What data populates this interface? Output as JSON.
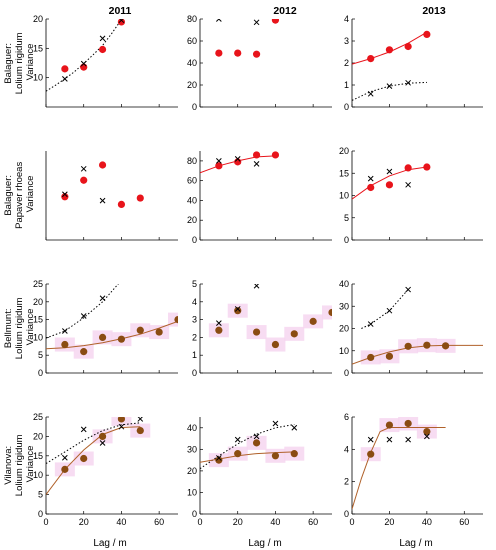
{
  "figure": {
    "column_titles": [
      "2011",
      "2012",
      "2013"
    ],
    "row_labels": [
      [
        "Balaguer:",
        "Lolium rigidum",
        "Variance"
      ],
      [
        "Balaguer:",
        "Papaver rhoeas",
        "Variance"
      ],
      [
        "Bellmunt:",
        "Lolium rigidum",
        "Variance"
      ],
      [
        "Vilanova:",
        "Lolium rigidum",
        "Variance"
      ]
    ],
    "xlabel": "Lag / m",
    "colors": {
      "red": "#e8141b",
      "brown": "#8a4c12",
      "brown_line": "#b0612a",
      "band": "#f6d6f0",
      "cross": "#000000"
    }
  },
  "chart_data": [
    {
      "type": "scatter",
      "row": 0,
      "col": 0,
      "title": "2011",
      "xlim": [
        0,
        70
      ],
      "ylim": [
        5,
        20
      ],
      "yticks": [
        10,
        15,
        20
      ],
      "xticks": [
        0,
        20,
        40,
        60
      ],
      "show_xticklabels": false,
      "color": "red",
      "series": [
        {
          "marker": "circle",
          "x": [
            10,
            20,
            30,
            40
          ],
          "y": [
            11.5,
            11.8,
            14.8,
            19.5
          ]
        },
        {
          "marker": "x",
          "x": [
            10,
            20,
            30,
            40
          ],
          "y": [
            9.8,
            12.4,
            16.7,
            19.8
          ]
        }
      ],
      "fits": [
        {
          "style": "dotted",
          "color": "black",
          "x": [
            0,
            5,
            10,
            15,
            20,
            25,
            30,
            35,
            40
          ],
          "y": [
            7.7,
            8.7,
            9.8,
            11.0,
            12.4,
            13.9,
            15.5,
            17.6,
            19.9
          ]
        }
      ]
    },
    {
      "type": "scatter",
      "row": 0,
      "col": 1,
      "title": "2012",
      "xlim": [
        0,
        70
      ],
      "ylim": [
        0,
        80
      ],
      "yticks": [
        0,
        20,
        40,
        60,
        80
      ],
      "xticks": [
        0,
        20,
        40,
        60
      ],
      "show_xticklabels": false,
      "color": "red",
      "series": [
        {
          "marker": "circle",
          "x": [
            10,
            20,
            30,
            40
          ],
          "y": [
            49,
            49,
            48,
            79
          ]
        },
        {
          "marker": "x",
          "x": [
            10,
            30
          ],
          "y": [
            80,
            77
          ]
        }
      ],
      "fits": []
    },
    {
      "type": "scatter",
      "row": 0,
      "col": 2,
      "title": "2013",
      "xlim": [
        0,
        70
      ],
      "ylim": [
        0,
        4
      ],
      "yticks": [
        0,
        1,
        2,
        3,
        4
      ],
      "xticks": [
        0,
        20,
        40,
        60
      ],
      "show_xticklabels": false,
      "color": "red",
      "series": [
        {
          "marker": "circle",
          "x": [
            10,
            20,
            30,
            40
          ],
          "y": [
            2.2,
            2.6,
            2.75,
            3.3
          ]
        },
        {
          "marker": "x",
          "x": [
            10,
            20,
            30
          ],
          "y": [
            0.6,
            0.95,
            1.1
          ]
        }
      ],
      "fits": [
        {
          "style": "solid",
          "color": "red",
          "x": [
            0,
            10,
            20,
            30,
            40
          ],
          "y": [
            1.95,
            2.2,
            2.5,
            2.9,
            3.4
          ]
        },
        {
          "style": "dotted",
          "color": "black",
          "x": [
            0,
            10,
            20,
            30,
            40
          ],
          "y": [
            0.3,
            0.7,
            0.95,
            1.08,
            1.12
          ]
        }
      ]
    },
    {
      "type": "scatter",
      "row": 1,
      "col": 0,
      "xlim": [
        0,
        70
      ],
      "ylim": [
        2,
        9
      ],
      "yticks": [],
      "xticks": [
        0,
        20,
        40,
        60
      ],
      "show_xticklabels": false,
      "color": "red",
      "series": [
        {
          "marker": "circle",
          "x": [
            10,
            20,
            30,
            40,
            50
          ],
          "y": [
            5.4,
            6.7,
            7.9,
            4.8,
            5.3
          ]
        },
        {
          "marker": "x",
          "x": [
            10,
            20,
            30
          ],
          "y": [
            5.6,
            7.6,
            5.1
          ]
        }
      ],
      "fits": []
    },
    {
      "type": "scatter",
      "row": 1,
      "col": 1,
      "xlim": [
        0,
        70
      ],
      "ylim": [
        0,
        90
      ],
      "yticks": [
        0,
        20,
        40,
        60,
        80
      ],
      "xticks": [
        0,
        20,
        40,
        60
      ],
      "show_xticklabels": false,
      "color": "red",
      "series": [
        {
          "marker": "circle",
          "x": [
            10,
            20,
            30,
            40
          ],
          "y": [
            75,
            79,
            86,
            86
          ]
        },
        {
          "marker": "x",
          "x": [
            10,
            20,
            30
          ],
          "y": [
            80,
            82,
            77
          ]
        }
      ],
      "fits": [
        {
          "style": "solid",
          "color": "red",
          "x": [
            0,
            10,
            20,
            30,
            40
          ],
          "y": [
            68,
            75,
            80,
            84,
            85
          ]
        }
      ]
    },
    {
      "type": "scatter",
      "row": 1,
      "col": 2,
      "xlim": [
        0,
        70
      ],
      "ylim": [
        0,
        20
      ],
      "yticks": [
        0,
        5,
        10,
        15,
        20
      ],
      "xticks": [
        0,
        20,
        40,
        60
      ],
      "show_xticklabels": false,
      "color": "red",
      "series": [
        {
          "marker": "circle",
          "x": [
            10,
            20,
            30,
            40
          ],
          "y": [
            11.8,
            12.4,
            16.2,
            16.4
          ]
        },
        {
          "marker": "x",
          "x": [
            10,
            20,
            30
          ],
          "y": [
            13.8,
            15.4,
            12.4
          ]
        }
      ],
      "fits": [
        {
          "style": "solid",
          "color": "red",
          "x": [
            0,
            10,
            20,
            30,
            40
          ],
          "y": [
            9.2,
            12.2,
            14.4,
            15.8,
            16.4
          ]
        }
      ]
    },
    {
      "type": "scatter",
      "row": 2,
      "col": 0,
      "xlim": [
        0,
        70
      ],
      "ylim": [
        0,
        25
      ],
      "yticks": [
        0,
        5,
        10,
        15,
        20,
        25
      ],
      "xticks": [
        0,
        20,
        40,
        60
      ],
      "show_xticklabels": false,
      "color": "brown",
      "series": [
        {
          "marker": "circle",
          "x": [
            10,
            20,
            30,
            40,
            50,
            60,
            70
          ],
          "y": [
            8,
            6,
            10,
            9.5,
            12,
            11.5,
            15
          ]
        },
        {
          "marker": "x",
          "x": [
            10,
            20,
            30
          ],
          "y": [
            11.8,
            16,
            21
          ]
        }
      ],
      "fits": [
        {
          "style": "dotted",
          "color": "black",
          "x": [
            0,
            10,
            20,
            30,
            40
          ],
          "y": [
            9.8,
            11.8,
            15.5,
            20,
            26
          ]
        },
        {
          "style": "solid",
          "color": "brown",
          "x": [
            0,
            10,
            20,
            30,
            40,
            50,
            60,
            70
          ],
          "y": [
            6.8,
            7.1,
            7.7,
            8.5,
            9.6,
            10.9,
            12.6,
            14.5
          ]
        }
      ]
    },
    {
      "type": "scatter",
      "row": 2,
      "col": 1,
      "xlim": [
        0,
        70
      ],
      "ylim": [
        0,
        5
      ],
      "yticks": [
        0,
        1,
        2,
        3,
        4,
        5
      ],
      "xticks": [
        0,
        20,
        40,
        60
      ],
      "show_xticklabels": false,
      "color": "brown",
      "series": [
        {
          "marker": "circle",
          "x": [
            10,
            20,
            30,
            40,
            50,
            60,
            70
          ],
          "y": [
            2.4,
            3.5,
            2.3,
            1.6,
            2.2,
            2.9,
            3.4
          ]
        },
        {
          "marker": "x",
          "x": [
            10,
            20,
            30
          ],
          "y": [
            2.8,
            3.6,
            4.9
          ]
        }
      ],
      "fits": []
    },
    {
      "type": "scatter",
      "row": 2,
      "col": 2,
      "xlim": [
        0,
        70
      ],
      "ylim": [
        0,
        40
      ],
      "yticks": [
        0,
        10,
        20,
        30,
        40
      ],
      "xticks": [
        0,
        20,
        40,
        60
      ],
      "show_xticklabels": false,
      "color": "brown",
      "series": [
        {
          "marker": "circle",
          "x": [
            10,
            20,
            30,
            40,
            50
          ],
          "y": [
            7,
            7.5,
            12,
            12.5,
            12.2
          ]
        },
        {
          "marker": "x",
          "x": [
            10,
            20,
            30
          ],
          "y": [
            22,
            28,
            37.5
          ]
        }
      ],
      "fits": [
        {
          "style": "dotted",
          "color": "black",
          "x": [
            5,
            10,
            20,
            30
          ],
          "y": [
            20,
            22,
            28,
            37.5
          ]
        },
        {
          "style": "solid",
          "color": "brown",
          "x": [
            0,
            10,
            20,
            30,
            40,
            50,
            60,
            70
          ],
          "y": [
            4,
            7,
            9.5,
            11.3,
            12.2,
            12.4,
            12.4,
            12.4
          ]
        }
      ]
    },
    {
      "type": "scatter",
      "row": 3,
      "col": 0,
      "xlim": [
        0,
        70
      ],
      "ylim": [
        0,
        25
      ],
      "yticks": [
        0,
        5,
        10,
        15,
        20,
        25
      ],
      "xticks": [
        0,
        20,
        40,
        60
      ],
      "show_xticklabels": true,
      "color": "brown",
      "series": [
        {
          "marker": "circle",
          "x": [
            10,
            20,
            30,
            40,
            50
          ],
          "y": [
            11.5,
            14.3,
            20,
            24.5,
            21.5
          ]
        },
        {
          "marker": "x",
          "x": [
            10,
            20,
            30,
            40,
            50
          ],
          "y": [
            14.5,
            21.8,
            18.3,
            22.5,
            24.5
          ]
        }
      ],
      "fits": [
        {
          "style": "dotted",
          "color": "black",
          "x": [
            0,
            10,
            20,
            30,
            40,
            50
          ],
          "y": [
            13,
            16,
            19,
            21.5,
            23,
            23.5
          ]
        },
        {
          "style": "solid",
          "color": "brown",
          "x": [
            0,
            10,
            20,
            30,
            40,
            50
          ],
          "y": [
            5,
            11.5,
            16.5,
            20.5,
            22.3,
            22.5
          ]
        }
      ]
    },
    {
      "type": "scatter",
      "row": 3,
      "col": 1,
      "xlim": [
        0,
        70
      ],
      "ylim": [
        0,
        45
      ],
      "yticks": [
        0,
        10,
        20,
        30,
        40
      ],
      "xticks": [
        0,
        20,
        40,
        60
      ],
      "show_xticklabels": true,
      "color": "brown",
      "series": [
        {
          "marker": "circle",
          "x": [
            10,
            20,
            30,
            40,
            50
          ],
          "y": [
            25,
            28,
            33,
            27,
            28
          ]
        },
        {
          "marker": "x",
          "x": [
            10,
            20,
            30,
            40,
            50
          ],
          "y": [
            26,
            34.5,
            36,
            42,
            40
          ]
        }
      ],
      "fits": [
        {
          "style": "dotted",
          "color": "black",
          "x": [
            0,
            10,
            20,
            30,
            40,
            50
          ],
          "y": [
            21,
            27,
            32.5,
            37,
            40,
            41.5
          ]
        },
        {
          "style": "solid",
          "color": "brown",
          "x": [
            0,
            10,
            20,
            30,
            40,
            50
          ],
          "y": [
            24,
            25.5,
            27,
            28,
            28.5,
            28.8
          ]
        }
      ]
    },
    {
      "type": "scatter",
      "row": 3,
      "col": 2,
      "xlim": [
        0,
        70
      ],
      "ylim": [
        0,
        6
      ],
      "yticks": [
        0,
        2,
        4,
        6
      ],
      "xticks": [
        0,
        20,
        40,
        60
      ],
      "show_xticklabels": true,
      "color": "brown",
      "series": [
        {
          "marker": "circle",
          "x": [
            10,
            20,
            30,
            40
          ],
          "y": [
            3.7,
            5.5,
            5.6,
            5.1
          ]
        },
        {
          "marker": "x",
          "x": [
            10,
            20,
            30,
            40
          ],
          "y": [
            4.6,
            4.6,
            4.6,
            4.8
          ]
        }
      ],
      "fits": [
        {
          "style": "solid",
          "color": "brown",
          "x": [
            0,
            5,
            10,
            15,
            20,
            30,
            40,
            50
          ],
          "y": [
            0.3,
            2.2,
            3.8,
            5.1,
            5.35,
            5.35,
            5.35,
            5.35
          ]
        }
      ]
    }
  ]
}
